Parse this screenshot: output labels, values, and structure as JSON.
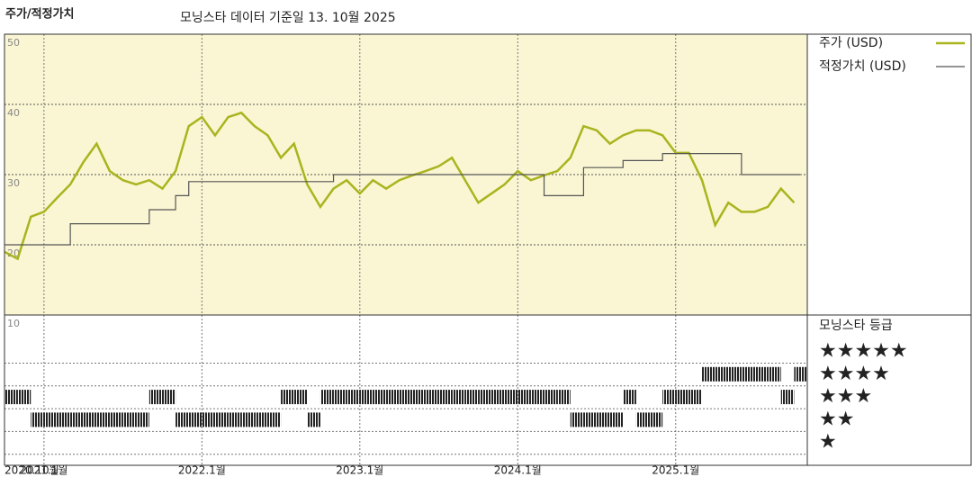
{
  "chart_data": [
    {
      "type": "line",
      "title": "주가/적정가치",
      "subtitle": "모닝스타 데이터 기준일 13. 10월 2025",
      "xlim": [
        "2020-10",
        "2025-11"
      ],
      "xticks": [
        {
          "value": "2020-10",
          "label": "2020.10월"
        },
        {
          "value": "2021-01",
          "label": "2021.1월"
        },
        {
          "value": "2022-01",
          "label": "2022.1월"
        },
        {
          "value": "2023-01",
          "label": "2023.1월"
        },
        {
          "value": "2024-01",
          "label": "2024.1월"
        },
        {
          "value": "2025-01",
          "label": "2025.1월"
        }
      ],
      "ylim": [
        10,
        50
      ],
      "yticks": [
        10,
        20,
        30,
        40,
        50
      ],
      "grid": true,
      "legend": "right",
      "series": [
        {
          "name": "주가 (USD)",
          "color": "#a9b41e",
          "style": "line",
          "x": [
            "2020-10",
            "2020-11",
            "2020-12",
            "2021-01",
            "2021-02",
            "2021-03",
            "2021-04",
            "2021-05",
            "2021-06",
            "2021-07",
            "2021-08",
            "2021-09",
            "2021-10",
            "2021-11",
            "2021-12",
            "2022-01",
            "2022-02",
            "2022-03",
            "2022-04",
            "2022-05",
            "2022-06",
            "2022-07",
            "2022-08",
            "2022-09",
            "2022-10",
            "2022-11",
            "2022-12",
            "2023-01",
            "2023-02",
            "2023-03",
            "2023-04",
            "2023-05",
            "2023-06",
            "2023-07",
            "2023-08",
            "2023-09",
            "2023-10",
            "2023-11",
            "2023-12",
            "2024-01",
            "2024-02",
            "2024-03",
            "2024-04",
            "2024-05",
            "2024-06",
            "2024-07",
            "2024-08",
            "2024-09",
            "2024-10",
            "2024-11",
            "2024-12",
            "2025-01",
            "2025-02",
            "2025-03",
            "2025-04",
            "2025-05",
            "2025-06",
            "2025-07",
            "2025-08",
            "2025-09",
            "2025-10"
          ],
          "values": [
            19,
            18,
            24,
            24.7,
            26.7,
            28.6,
            31.8,
            34.4,
            30.5,
            29.2,
            28.6,
            29.2,
            28,
            30.5,
            36.9,
            38.2,
            35.6,
            38.2,
            38.8,
            36.9,
            35.6,
            32.4,
            34.4,
            28.6,
            25.4,
            28,
            29.2,
            27.3,
            29.2,
            28,
            29.2,
            29.9,
            30.5,
            31.2,
            32.4,
            29.2,
            26,
            27.3,
            28.6,
            30.5,
            29.2,
            29.9,
            30.5,
            32.4,
            36.9,
            36.3,
            34.4,
            35.6,
            36.3,
            36.3,
            35.6,
            33.1,
            33.1,
            29.2,
            22.8,
            26,
            24.7,
            24.7,
            25.4,
            28,
            26
          ]
        },
        {
          "name": "적정가치 (USD)",
          "color": "#555555",
          "style": "step",
          "x": [
            "2020-10",
            "2021-03",
            "2021-09",
            "2021-11",
            "2021-12",
            "2022-11",
            "2024-03",
            "2024-06",
            "2024-09",
            "2024-12",
            "2025-06",
            "2025-10"
          ],
          "values": [
            20,
            23,
            25,
            27,
            29,
            30,
            27,
            31,
            32,
            33,
            30,
            30
          ]
        }
      ]
    },
    {
      "type": "rating-strip",
      "title": "모닝스타 등급",
      "color": "#222222",
      "xlim": [
        "2020-10",
        "2025-11"
      ],
      "ylim": [
        0,
        6.6
      ],
      "yticks": [
        {
          "value": 5,
          "label": "★★★★★"
        },
        {
          "value": 4,
          "label": "★★★★"
        },
        {
          "value": 3,
          "label": "★★★"
        },
        {
          "value": 2,
          "label": "★★"
        },
        {
          "value": 1,
          "label": "★"
        }
      ],
      "x": [
        "2020-10",
        "2020-11",
        "2020-12",
        "2021-01",
        "2021-02",
        "2021-03",
        "2021-04",
        "2021-05",
        "2021-06",
        "2021-07",
        "2021-08",
        "2021-09",
        "2021-10",
        "2021-11",
        "2021-12",
        "2022-01",
        "2022-02",
        "2022-03",
        "2022-04",
        "2022-05",
        "2022-06",
        "2022-07",
        "2022-08",
        "2022-09",
        "2022-10",
        "2022-11",
        "2022-12",
        "2023-01",
        "2023-02",
        "2023-03",
        "2023-04",
        "2023-05",
        "2023-06",
        "2023-07",
        "2023-08",
        "2023-09",
        "2023-10",
        "2023-11",
        "2023-12",
        "2024-01",
        "2024-02",
        "2024-03",
        "2024-04",
        "2024-05",
        "2024-06",
        "2024-07",
        "2024-08",
        "2024-09",
        "2024-10",
        "2024-11",
        "2024-12",
        "2025-01",
        "2025-02",
        "2025-03",
        "2025-04",
        "2025-05",
        "2025-06",
        "2025-07",
        "2025-08",
        "2025-09",
        "2025-10"
      ],
      "values": [
        3,
        3,
        2,
        2,
        2,
        2,
        2,
        2,
        2,
        2,
        2,
        3,
        3,
        2,
        2,
        2,
        2,
        2,
        2,
        2,
        2,
        3,
        3,
        2,
        3,
        3,
        3,
        3,
        3,
        3,
        3,
        3,
        3,
        3,
        3,
        3,
        3,
        3,
        3,
        3,
        3,
        3,
        3,
        2,
        2,
        2,
        2,
        3,
        2,
        2,
        3,
        3,
        3,
        4,
        4,
        4,
        4,
        4,
        4,
        3,
        4
      ]
    }
  ]
}
